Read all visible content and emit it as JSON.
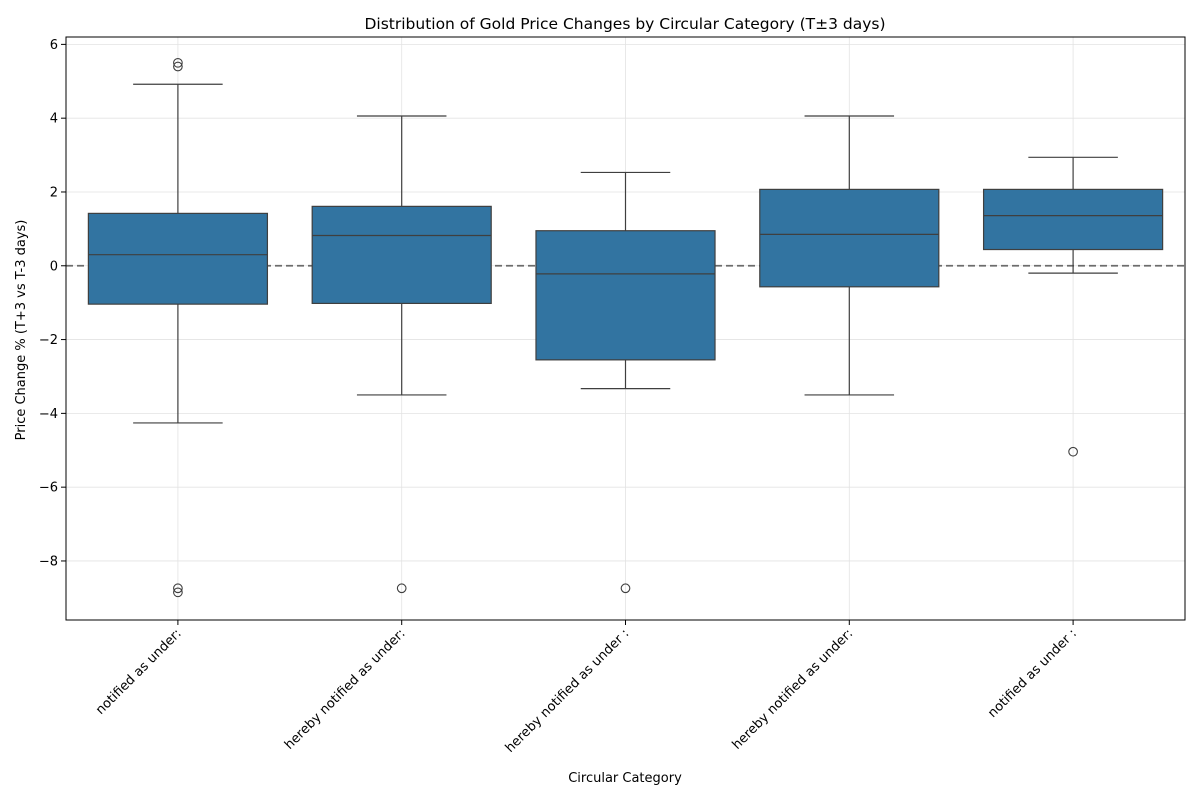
{
  "chart_data": {
    "type": "box",
    "title": "Distribution of Gold Price Changes by Circular Category (T±3 days)",
    "xlabel": "Circular Category",
    "ylabel": "Price Change % (T+3 vs T-3 days)",
    "ylim": [
      -9.6,
      6.2
    ],
    "yticks": [
      -8,
      -6,
      -4,
      -2,
      0,
      2,
      4,
      6
    ],
    "ytick_labels": [
      "−8",
      "−6",
      "−4",
      "−2",
      "0",
      "2",
      "4",
      "6"
    ],
    "grid": true,
    "reference_line": {
      "y": 0,
      "style": "dashed"
    },
    "box_color": "#3274a1",
    "categories": [
      "notified as under:",
      "hereby notified as under:",
      "hereby notified as under :",
      "hereby  notified as under:",
      "notified as under :"
    ],
    "boxes": [
      {
        "q1": -1.04,
        "median": 0.3,
        "q3": 1.42,
        "whisker_low": -4.26,
        "whisker_high": 4.92,
        "outliers": [
          5.5,
          5.4,
          -8.74,
          -8.85
        ]
      },
      {
        "q1": -1.02,
        "median": 0.82,
        "q3": 1.61,
        "whisker_low": -3.5,
        "whisker_high": 4.06,
        "outliers": [
          -8.74
        ]
      },
      {
        "q1": -2.55,
        "median": -0.22,
        "q3": 0.95,
        "whisker_low": -3.33,
        "whisker_high": 2.53,
        "outliers": [
          -8.74
        ]
      },
      {
        "q1": -0.57,
        "median": 0.85,
        "q3": 2.07,
        "whisker_low": -3.5,
        "whisker_high": 4.06,
        "outliers": []
      },
      {
        "q1": 0.44,
        "median": 1.36,
        "q3": 2.07,
        "whisker_low": -0.2,
        "whisker_high": 2.94,
        "outliers": [
          -5.04
        ]
      }
    ]
  }
}
